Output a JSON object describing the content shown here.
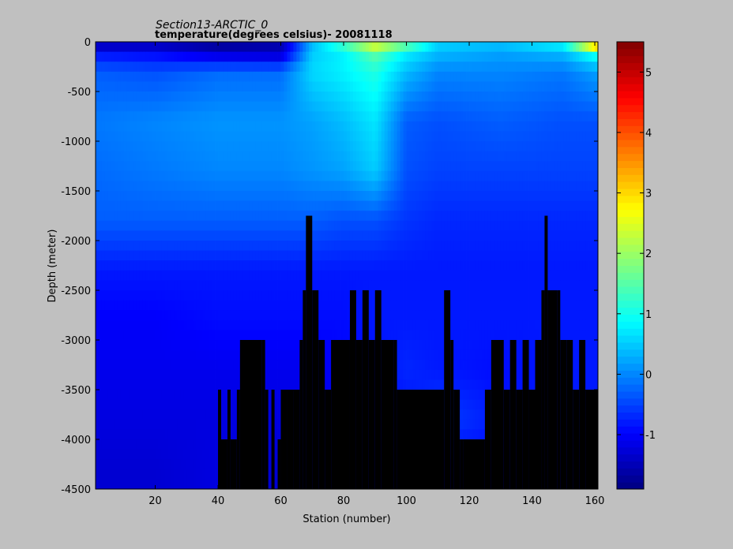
{
  "chart_data": {
    "type": "heatmap",
    "title": "Section13-ARCTIC_0",
    "subtitle": "temperature(degrees  celsius)- 20081118",
    "xlabel": "Station (number)",
    "ylabel": "Depth (meter)",
    "xlim": [
      1,
      161
    ],
    "ylim": [
      -4500,
      0
    ],
    "x_ticks": [
      20,
      40,
      60,
      80,
      100,
      120,
      140,
      160
    ],
    "x_tick_labels": [
      "20",
      "40",
      "60",
      "80",
      "100",
      "120",
      "140",
      "160"
    ],
    "y_ticks": [
      0,
      -500,
      -1000,
      -1500,
      -2000,
      -2500,
      -3000,
      -3500,
      -4000,
      -4500
    ],
    "y_tick_labels": [
      "0",
      "-500",
      "-1000",
      "-1500",
      "-2000",
      "-2500",
      "-3000",
      "-3500",
      "-4000",
      "-4500"
    ],
    "colorbar": {
      "range": [
        -1.9,
        5.5
      ],
      "ticks": [
        -1,
        0,
        1,
        2,
        3,
        4,
        5
      ],
      "tick_labels": [
        "-1",
        "0",
        "1",
        "2",
        "3",
        "4",
        "5"
      ],
      "colormap": "jet"
    },
    "bathymetry_color": "#000000",
    "temperature_field": [
      {
        "depth": 0,
        "stations": [
          1,
          20,
          40,
          60,
          70,
          80,
          90,
          100,
          110,
          130,
          150,
          161
        ],
        "values": [
          -1.8,
          -1.7,
          -1.9,
          -1.6,
          0.3,
          1.6,
          3.0,
          2.0,
          0.6,
          0.5,
          1.0,
          4.8
        ]
      },
      {
        "depth": -100,
        "stations": [
          1,
          20,
          40,
          60,
          70,
          80,
          90,
          100,
          110,
          130,
          150,
          161
        ],
        "values": [
          -0.9,
          -1.0,
          -1.4,
          -1.5,
          0.5,
          0.8,
          1.6,
          0.8,
          0.4,
          0.2,
          0.4,
          1.2
        ]
      },
      {
        "depth": -300,
        "stations": [
          1,
          20,
          40,
          60,
          70,
          80,
          90,
          100,
          110,
          130,
          150,
          161
        ],
        "values": [
          -0.3,
          -0.4,
          -0.2,
          -0.2,
          0.6,
          0.8,
          1.1,
          0.4,
          0.0,
          0.0,
          -0.1,
          0.2
        ]
      },
      {
        "depth": -800,
        "stations": [
          1,
          20,
          40,
          60,
          70,
          80,
          90,
          100,
          110,
          130,
          150,
          161
        ],
        "values": [
          -0.1,
          0.0,
          0.1,
          0.1,
          0.2,
          0.4,
          0.7,
          -0.3,
          -0.4,
          -0.3,
          -0.4,
          -0.4
        ]
      },
      {
        "depth": -1300,
        "stations": [
          1,
          20,
          40,
          60,
          70,
          80,
          90,
          100,
          110,
          130,
          150,
          161
        ],
        "values": [
          -0.2,
          -0.1,
          0.0,
          0.0,
          0.1,
          0.2,
          0.5,
          -0.4,
          -0.5,
          -0.5,
          -0.5,
          -0.5
        ]
      },
      {
        "depth": -1800,
        "stations": [
          1,
          20,
          40,
          60,
          70,
          80,
          90,
          100,
          110,
          130,
          150,
          161
        ],
        "values": [
          -0.3,
          -0.3,
          -0.3,
          -0.3,
          -0.3,
          -0.4,
          -0.4,
          -0.6,
          -0.7,
          -0.7,
          -0.7,
          -0.7
        ]
      },
      {
        "depth": -2300,
        "stations": [
          1,
          20,
          40,
          60,
          70,
          80,
          90,
          100,
          110,
          130,
          150,
          161
        ],
        "values": [
          -0.8,
          -0.8,
          -0.8,
          -0.8,
          -0.8,
          -0.8,
          -0.8,
          -0.8,
          -0.8,
          -0.8,
          -0.8,
          -0.8
        ]
      },
      {
        "depth": -2800,
        "stations": [
          1,
          20,
          40,
          60,
          70,
          80,
          90,
          100,
          110,
          130,
          150,
          161
        ],
        "values": [
          -1.0,
          -1.0,
          -0.9,
          -0.9,
          -0.9,
          -0.9,
          -0.8,
          -0.8,
          -0.8,
          -0.8,
          -0.8,
          -0.8
        ]
      },
      {
        "depth": -3300,
        "stations": [
          1,
          20,
          40,
          60,
          70,
          80,
          90,
          100,
          110,
          130,
          150,
          161
        ],
        "values": [
          -1.1,
          -1.1,
          -1.1,
          -1.1,
          -1.1,
          -1.0,
          -0.9,
          -0.7,
          -0.8,
          -0.9,
          -0.8,
          -0.8
        ]
      },
      {
        "depth": -3800,
        "stations": [
          1,
          20,
          40,
          60,
          70,
          80,
          90,
          100,
          110,
          130,
          150,
          161
        ],
        "values": [
          -1.2,
          -1.2,
          -1.2,
          -1.2,
          -1.2,
          -1.1,
          -1.0,
          -0.9,
          -0.5,
          -0.8,
          -0.8,
          -0.8
        ]
      },
      {
        "depth": -4300,
        "stations": [
          1,
          20,
          40,
          60,
          70,
          80,
          90,
          100,
          110,
          130,
          150,
          161
        ],
        "values": [
          -1.3,
          -1.3,
          -1.2,
          -1.3,
          -1.3,
          -1.2,
          -1.1,
          -1.0,
          -1.0,
          -1.0,
          -1.0,
          -1.0
        ]
      }
    ],
    "bottom_depth": {
      "stations": [
        40,
        41,
        43,
        44,
        46,
        47,
        54,
        55,
        56,
        57,
        58,
        59,
        60,
        62,
        64,
        66,
        67,
        68,
        70,
        72,
        74,
        76,
        82,
        84,
        86,
        88,
        90,
        92,
        96,
        97,
        112,
        114,
        115,
        117,
        118,
        125,
        127,
        131,
        133,
        135,
        137,
        139,
        141,
        143,
        144,
        145,
        148,
        149,
        151,
        153,
        155,
        157,
        161
      ],
      "depths": [
        -3500,
        -4000,
        -3500,
        -4000,
        -3500,
        -3000,
        -3000,
        -3500,
        -4500,
        -3500,
        -4500,
        -4000,
        -3500,
        -3500,
        -3500,
        -3000,
        -2500,
        -1750,
        -2500,
        -3000,
        -3500,
        -3000,
        -2500,
        -3000,
        -2500,
        -3000,
        -2500,
        -3000,
        -3000,
        -3500,
        -2500,
        -3000,
        -3500,
        -4000,
        -4000,
        -3500,
        -3000,
        -3500,
        -3000,
        -3500,
        -3000,
        -3500,
        -3000,
        -2500,
        -1750,
        -2500,
        -2500,
        -3000,
        -3000,
        -3500,
        -3000,
        -3500,
        -3500
      ]
    }
  }
}
